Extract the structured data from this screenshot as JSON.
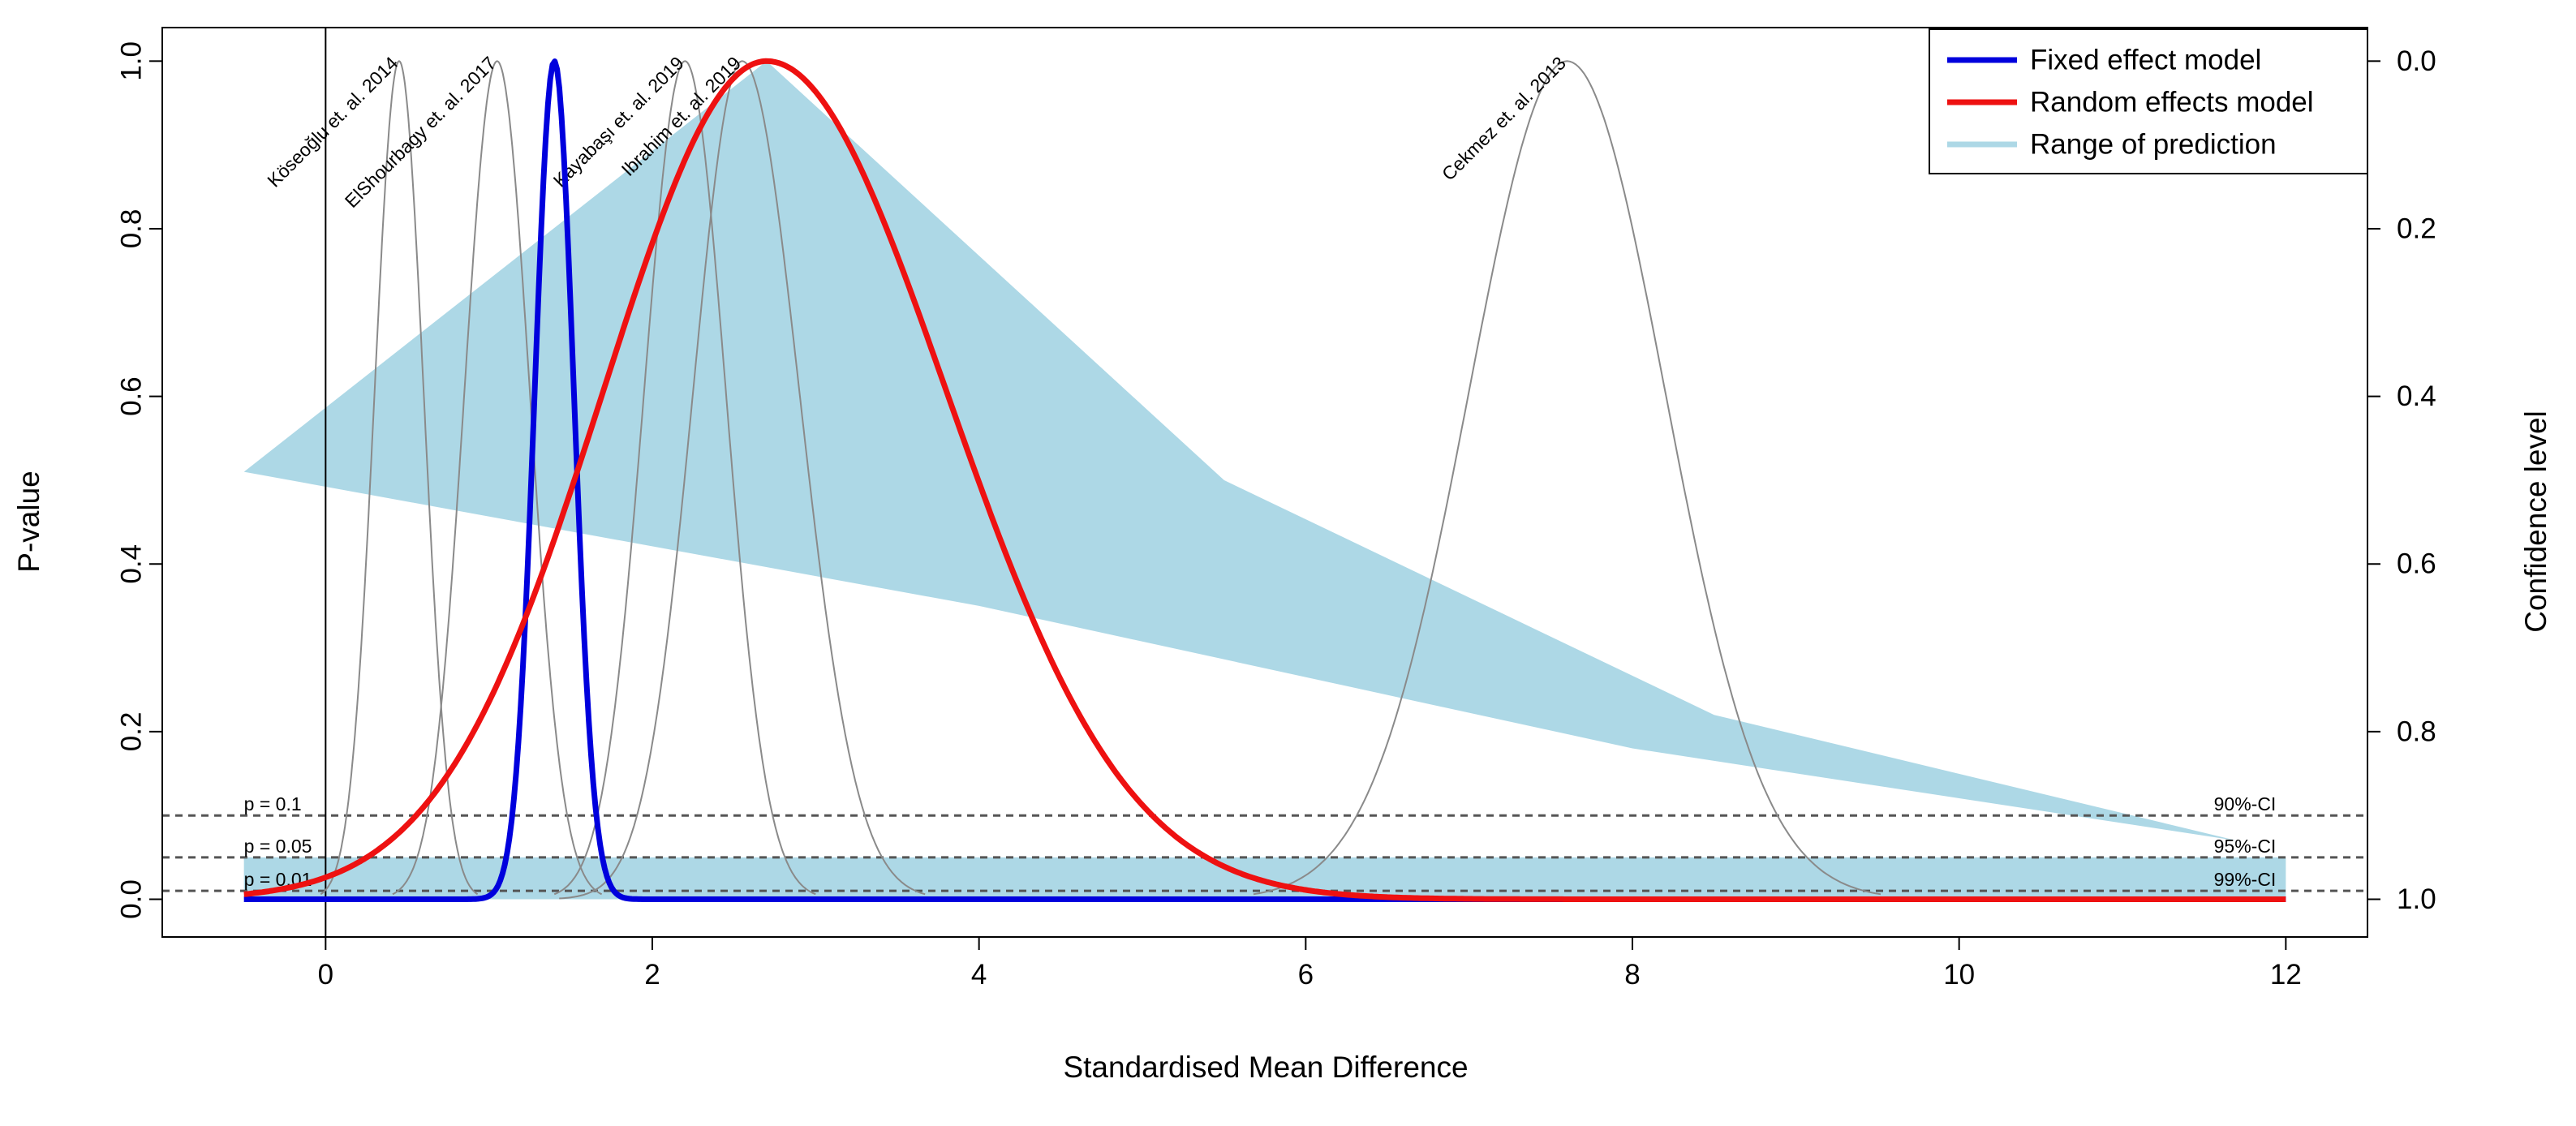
{
  "chart_data": {
    "type": "line",
    "title": "",
    "xlabel": "Standardised Mean Difference",
    "ylabel": "P-value",
    "ylabel_right": "Confidence level",
    "xlim": [
      -1.0,
      12.5
    ],
    "ylim": [
      -0.045,
      1.04
    ],
    "x_ticks": [
      0,
      2,
      4,
      6,
      8,
      10,
      12
    ],
    "y_ticks": [
      0.0,
      0.2,
      0.4,
      0.6,
      0.8,
      1.0
    ],
    "y_tick_labels": [
      "0.0",
      "0.2",
      "0.4",
      "0.6",
      "0.8",
      "1.0"
    ],
    "right_ticks": [
      0.0,
      0.2,
      0.4,
      0.6,
      0.8,
      1.0
    ],
    "right_tick_labels": [
      "0.0",
      "0.2",
      "0.4",
      "0.6",
      "0.8",
      "1.0"
    ],
    "vertical_reference_x": 0,
    "reference_lines": [
      {
        "p": 0.1,
        "left_label": "p = 0.1",
        "right_label": "90%-CI"
      },
      {
        "p": 0.05,
        "left_label": "p = 0.05",
        "right_label": "95%-CI"
      },
      {
        "p": 0.01,
        "left_label": "p = 0.01",
        "right_label": "99%-CI"
      }
    ],
    "studies": [
      {
        "name": "Köseoğlu et. al. 2014",
        "estimate": 0.45,
        "sd_left": 0.15,
        "sd_right": 0.15
      },
      {
        "name": "ElShourbagy et. al. 2017",
        "estimate": 1.05,
        "sd_left": 0.2,
        "sd_right": 0.2
      },
      {
        "name": "Kayabaşı et. al. 2019",
        "estimate": 2.2,
        "sd_left": 0.25,
        "sd_right": 0.25
      },
      {
        "name": "Ibrahim et. al. 2019",
        "estimate": 2.55,
        "sd_left": 0.3,
        "sd_right": 0.35
      },
      {
        "name": "Cekmez et. al. 2013",
        "estimate": 7.6,
        "sd_left": 0.6,
        "sd_right": 0.6
      }
    ],
    "series": [
      {
        "name": "Fixed effect model",
        "color": "#0000dd",
        "estimate": 1.4,
        "sd_left": 0.12,
        "sd_right": 0.12
      },
      {
        "name": "Random effects model",
        "color": "#ee1111",
        "estimate": 2.7,
        "sd_left": 1.0,
        "sd_right": 1.1
      }
    ],
    "prediction_region": {
      "name": "Range of prediction",
      "color": "#add8e6",
      "upper": [
        [
          -0.5,
          0.51
        ],
        [
          2.7,
          1.0
        ],
        [
          5.5,
          0.5
        ],
        [
          8.5,
          0.22
        ],
        [
          11.7,
          0.07
        ]
      ],
      "lower": [
        [
          -0.5,
          0.51
        ],
        [
          4.0,
          0.35
        ],
        [
          8.0,
          0.18
        ],
        [
          11.7,
          0.07
        ]
      ],
      "band": {
        "x0": -0.5,
        "x1": 12.0,
        "y0": 0.0,
        "y1": 0.05
      }
    },
    "legend": {
      "position": "top-right",
      "entries": [
        {
          "label": "Fixed effect model",
          "color": "#0000dd"
        },
        {
          "label": "Random effects model",
          "color": "#ee1111"
        },
        {
          "label": "Range of prediction",
          "color": "#add8e6"
        }
      ]
    }
  }
}
